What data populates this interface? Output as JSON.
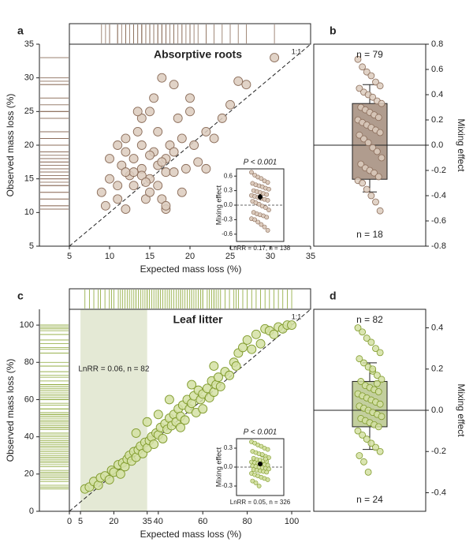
{
  "chart_data": [
    {
      "type": "scatter",
      "panel": "a",
      "title": "Absorptive roots",
      "xlabel": "Expected mass loss (%)",
      "ylabel": "Observed mass loss (%)",
      "line_label": "1:1",
      "fill": "#dccbbd",
      "stroke": "#8b6d5a",
      "rug_color": "#8b6d5a",
      "xlim": [
        5,
        35
      ],
      "ylim": [
        5,
        35
      ],
      "xticks": [
        5,
        10,
        15,
        20,
        25,
        30,
        35
      ],
      "yticks": [
        5,
        10,
        15,
        20,
        25,
        30,
        35
      ],
      "x": [
        9,
        9.5,
        10,
        11,
        12,
        11.5,
        12,
        12,
        11,
        12.5,
        13,
        13,
        13.5,
        13,
        14,
        14,
        14,
        14.5,
        15,
        15,
        15,
        15.5,
        15.5,
        16,
        16,
        16,
        16.5,
        16.5,
        17,
        17,
        17,
        17.5,
        18,
        18,
        18.5,
        19,
        19,
        19.5,
        20,
        20,
        21,
        22,
        22,
        23,
        24,
        25,
        26,
        27,
        30.5,
        10,
        12,
        14,
        15,
        16.5,
        18,
        13.5,
        20.5,
        17,
        11,
        14.5
      ],
      "y": [
        13,
        11,
        15,
        12,
        10.5,
        17,
        19,
        21,
        20,
        15.5,
        14,
        16,
        22,
        18,
        16.5,
        20,
        24,
        12,
        15,
        13,
        25,
        19,
        27,
        17,
        14,
        22,
        12,
        30,
        18,
        10.5,
        16,
        20,
        29,
        16,
        24,
        21,
        13,
        16.5,
        27,
        25,
        17.5,
        22,
        16.5,
        21,
        24,
        26,
        29.5,
        29,
        33,
        18,
        16,
        15.5,
        18.5,
        17.5,
        19,
        25,
        20,
        11,
        14,
        14.5
      ],
      "inset": {
        "ylabel": "Mixing effect",
        "p_label": "P < 0.001",
        "note": "LnRR = 0.17, n = 138",
        "ylim": [
          -0.75,
          0.75
        ],
        "yticks": [
          -0.6,
          -0.3,
          {
            "value": 0,
            "label": "0.0"
          },
          0.3,
          0.6
        ],
        "mean": 0.17,
        "ci": 0.06
      }
    },
    {
      "type": "box",
      "panel": "b",
      "ylabel": "Mixing effect",
      "n_top": "n = 79",
      "n_bottom": "n = 18",
      "fill": "#dccbbd",
      "stroke": "#8b6d5a",
      "box_fill": "#b09c8e",
      "refline": 0,
      "ylim": [
        -0.8,
        0.8
      ],
      "yticks": [
        0.8,
        0.6,
        0.4,
        0.2,
        {
          "value": 0,
          "label": "0.0"
        },
        -0.2,
        -0.4,
        -0.6,
        -0.8
      ],
      "q1": -0.27,
      "q3": 0.33,
      "whisker_low": -0.37,
      "whisker_high": 0.48,
      "values": [
        0.68,
        0.62,
        0.58,
        0.55,
        0.5,
        0.47,
        0.45,
        0.42,
        0.4,
        0.38,
        0.35,
        0.33,
        0.3,
        0.28,
        0.26,
        0.24,
        0.22,
        0.2,
        0.18,
        0.16,
        0.14,
        0.12,
        0.1,
        0.08,
        0.05,
        0.02,
        -0.02,
        -0.05,
        -0.1,
        -0.15,
        -0.18,
        -0.2,
        -0.22,
        -0.25,
        -0.28,
        -0.3,
        -0.35,
        -0.4,
        -0.45,
        -0.52
      ]
    },
    {
      "type": "scatter",
      "panel": "c",
      "title": "Leaf litter",
      "xlabel": "Expected mass loss (%)",
      "ylabel": "Observed mass loss (%)",
      "line_label": "1:1",
      "fill": "#d3e0a3",
      "stroke": "#7f9a2a",
      "rug_color": "#8aa634",
      "shade": [
        5,
        35
      ],
      "shade_color": "#e4e9d5",
      "shade_label": "LnRR = 0.06, n = 82",
      "xlim": [
        0,
        108.5
      ],
      "ylim": [
        0,
        108.5
      ],
      "xticks": [
        0,
        5,
        20,
        35,
        40,
        60,
        80,
        100
      ],
      "yticks": [
        0,
        20,
        40,
        60,
        80,
        100
      ],
      "x": [
        7,
        9,
        11,
        13,
        14,
        16,
        18,
        19,
        20,
        22,
        23,
        24,
        25,
        26,
        27,
        28,
        29,
        30,
        31,
        32,
        33,
        34,
        35,
        36,
        37,
        38,
        39,
        40,
        41,
        42,
        43,
        44,
        45,
        46,
        47,
        48,
        49,
        50,
        51,
        52,
        53,
        54,
        55,
        56,
        57,
        58,
        59,
        60,
        62,
        63,
        64,
        65,
        66,
        67,
        68,
        70,
        72,
        74,
        75,
        76,
        78,
        80,
        82,
        84,
        86,
        88,
        90,
        92,
        94,
        96,
        98,
        100,
        30,
        35,
        40,
        45,
        50,
        55,
        60,
        65
      ],
      "y": [
        12,
        13,
        16,
        14,
        18,
        19,
        17,
        22,
        21,
        25,
        20,
        26,
        24,
        28,
        30,
        27,
        32,
        29,
        33,
        35,
        31,
        37,
        34,
        38,
        40,
        36,
        42,
        41,
        45,
        39,
        47,
        44,
        50,
        46,
        52,
        48,
        55,
        51,
        57,
        49,
        60,
        55,
        58,
        62,
        53,
        65,
        60,
        63,
        66,
        61,
        70,
        64,
        68,
        72,
        67,
        75,
        73,
        80,
        78,
        85,
        88,
        92,
        87,
        95,
        90,
        98,
        97,
        95,
        99,
        98,
        100,
        100,
        42,
        48,
        52,
        60,
        45,
        68,
        55,
        78
      ],
      "inset": {
        "ylabel": "Mixing effect",
        "p_label": "P < 0.001",
        "note": "LnRR = 0.05, n = 326",
        "ylim": [
          -0.45,
          0.45
        ],
        "yticks": [
          -0.3,
          {
            "value": 0,
            "label": "0.0"
          },
          0.3
        ],
        "mean": 0.05,
        "ci": 0.03
      }
    },
    {
      "type": "box",
      "panel": "d",
      "ylabel": "Mixing effect",
      "n_top": "n = 82",
      "n_bottom": "n = 24",
      "fill": "#d3e0a3",
      "stroke": "#7f9a2a",
      "box_fill": "#c3cf9e",
      "refline": 0,
      "ylim": [
        -0.49,
        0.49
      ],
      "yticks": [
        0.4,
        0.2,
        {
          "value": 0,
          "label": "0.0"
        },
        -0.2,
        -0.4
      ],
      "q1": -0.08,
      "q3": 0.14,
      "whisker_low": -0.19,
      "whisker_high": 0.23,
      "values": [
        0.4,
        0.38,
        0.35,
        0.33,
        0.3,
        0.28,
        0.25,
        0.23,
        0.21,
        0.19,
        0.17,
        0.15,
        0.14,
        0.12,
        0.11,
        0.1,
        0.09,
        0.08,
        0.07,
        0.06,
        0.05,
        0.04,
        0.03,
        0.02,
        0.01,
        0,
        -0.01,
        -0.02,
        -0.03,
        -0.04,
        -0.05,
        -0.06,
        -0.07,
        -0.08,
        -0.1,
        -0.12,
        -0.14,
        -0.16,
        -0.18,
        -0.2,
        -0.22,
        -0.25,
        -0.3,
        0.2,
        0.13
      ]
    }
  ]
}
